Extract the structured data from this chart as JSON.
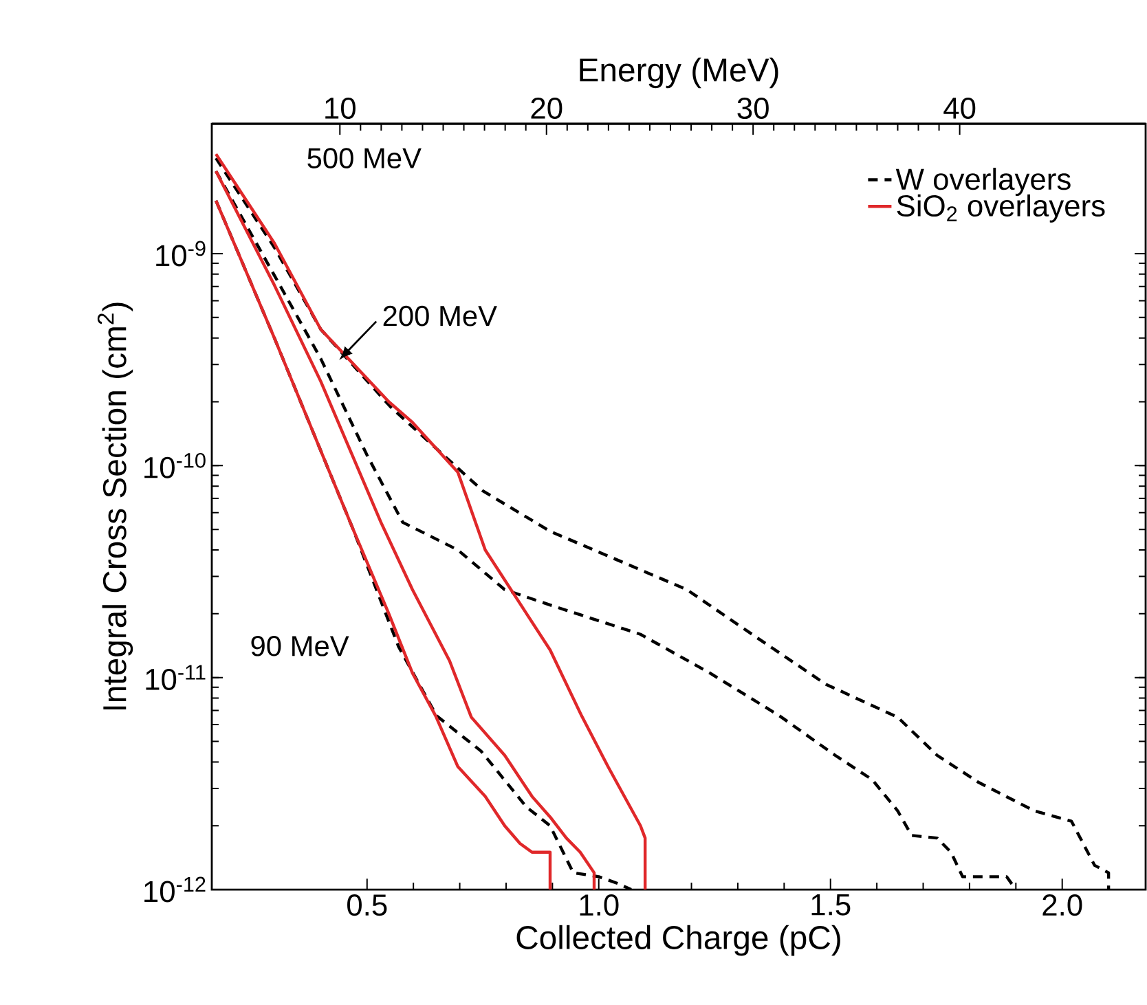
{
  "chart_data": {
    "type": "line",
    "xlabel": "Collected Charge (pC)",
    "ylabel": "Integral Cross Section (cm$^{2}$)",
    "x2label": "Energy (MeV)",
    "xlim": [
      0.165,
      2.18
    ],
    "xticks": [
      {
        "value": 0.5,
        "label": "0.5"
      },
      {
        "value": 1,
        "label": "1.0"
      },
      {
        "value": 1.5,
        "label": "1.5"
      },
      {
        "value": 2,
        "label": "2.0"
      }
    ],
    "x2lim": [
      3.8,
      49
    ],
    "x2ticks": [
      10,
      20,
      30,
      40
    ],
    "ylim": [
      1e-12,
      4.1e-09
    ],
    "yticks": [
      {
        "value": 1e-12,
        "label": "10$^{-12}$"
      },
      {
        "value": 1e-11,
        "label": "10$^{-11}$"
      },
      {
        "value": 1e-10,
        "label": "10$^{-10}$"
      },
      {
        "value": 1e-09,
        "label": "10$^{-9}$"
      }
    ],
    "log": "y",
    "grid": false,
    "legend": "top right",
    "marker": "none",
    "series": [
      {
        "name": "W overlayers",
        "color": "#000000",
        "line_style": "dashed",
        "x": [
          0.174,
          0.3,
          0.4,
          0.55,
          0.65,
          0.75,
          0.895,
          1.19,
          1.34,
          1.49,
          1.645,
          1.73,
          1.82,
          1.94,
          2.02,
          2.07,
          2.1,
          2.1
        ],
        "values": [
          2.82e-09,
          1.07e-09,
          4.4e-10,
          1.9e-10,
          1.2e-10,
          7.6e-11,
          4.9e-11,
          2.6e-11,
          1.55e-11,
          9.3e-12,
          6.5e-12,
          4.3e-12,
          3.2e-12,
          2.35e-12,
          2.1e-12,
          1.3e-12,
          1.2e-12,
          1e-12
        ]
      },
      {
        "color": "#000000",
        "line_style": "dashed",
        "x": [
          0.174,
          0.3,
          0.4,
          0.5,
          0.577,
          0.696,
          0.797,
          0.895,
          1.09,
          1.24,
          1.39,
          1.51,
          1.59,
          1.645,
          1.675,
          1.73,
          1.76,
          1.785,
          1.88,
          1.9
        ],
        "values": [
          2.45e-09,
          7.9e-10,
          3.2e-10,
          1.12e-10,
          5.4e-11,
          4e-11,
          2.6e-11,
          2.2e-11,
          1.6e-11,
          1.05e-11,
          6.6e-12,
          4.3e-12,
          3.3e-12,
          2.35e-12,
          1.8e-12,
          1.75e-12,
          1.5e-12,
          1.15e-12,
          1.15e-12,
          1e-12
        ]
      },
      {
        "color": "#000000",
        "line_style": "dashed",
        "x": [
          0.174,
          0.3,
          0.47,
          0.568,
          0.65,
          0.746,
          0.844,
          0.895,
          0.945,
          1.0,
          1.04,
          1.07
        ],
        "values": [
          1.78e-09,
          4e-10,
          5e-11,
          1.4e-11,
          6.6e-12,
          4.5e-12,
          2.45e-12,
          2e-12,
          1.2e-12,
          1.15e-12,
          1.07e-12,
          1e-12
        ]
      },
      {
        "name": "SiO$_{2}$ overlayers",
        "color": "#e0282a",
        "line_style": "solid",
        "x": [
          0.174,
          0.3,
          0.4,
          0.547,
          0.598,
          0.696,
          0.755,
          0.895,
          0.963,
          1.02,
          1.09,
          1.1,
          1.1
        ],
        "values": [
          2.95e-09,
          1.12e-09,
          4.4e-10,
          2e-10,
          1.6e-10,
          9.3e-11,
          4e-11,
          1.35e-11,
          6.6e-12,
          3.8e-12,
          2e-12,
          1.75e-12,
          1e-12
        ]
      },
      {
        "color": "#e0282a",
        "line_style": "solid",
        "x": [
          0.174,
          0.3,
          0.4,
          0.53,
          0.598,
          0.678,
          0.725,
          0.797,
          0.856,
          0.895,
          0.93,
          0.96,
          0.99,
          0.99
        ],
        "values": [
          2.45e-09,
          7.1e-10,
          2.5e-10,
          5.4e-11,
          2.6e-11,
          1.2e-11,
          6.5e-12,
          4.3e-12,
          2.75e-12,
          2.2e-12,
          1.75e-12,
          1.5e-12,
          1.2e-12,
          1e-12
        ]
      },
      {
        "color": "#e0282a",
        "line_style": "solid",
        "x": [
          0.174,
          0.3,
          0.47,
          0.547,
          0.598,
          0.648,
          0.696,
          0.755,
          0.797,
          0.83,
          0.856,
          0.895,
          0.895
        ],
        "values": [
          1.78e-09,
          4e-10,
          5e-11,
          2e-11,
          1.05e-11,
          6.6e-12,
          3.8e-12,
          2.75e-12,
          2e-12,
          1.65e-12,
          1.5e-12,
          1.5e-12,
          1e-12
        ]
      }
    ],
    "annotations": [
      "500 MeV",
      "200 MeV",
      "90 MeV"
    ]
  }
}
